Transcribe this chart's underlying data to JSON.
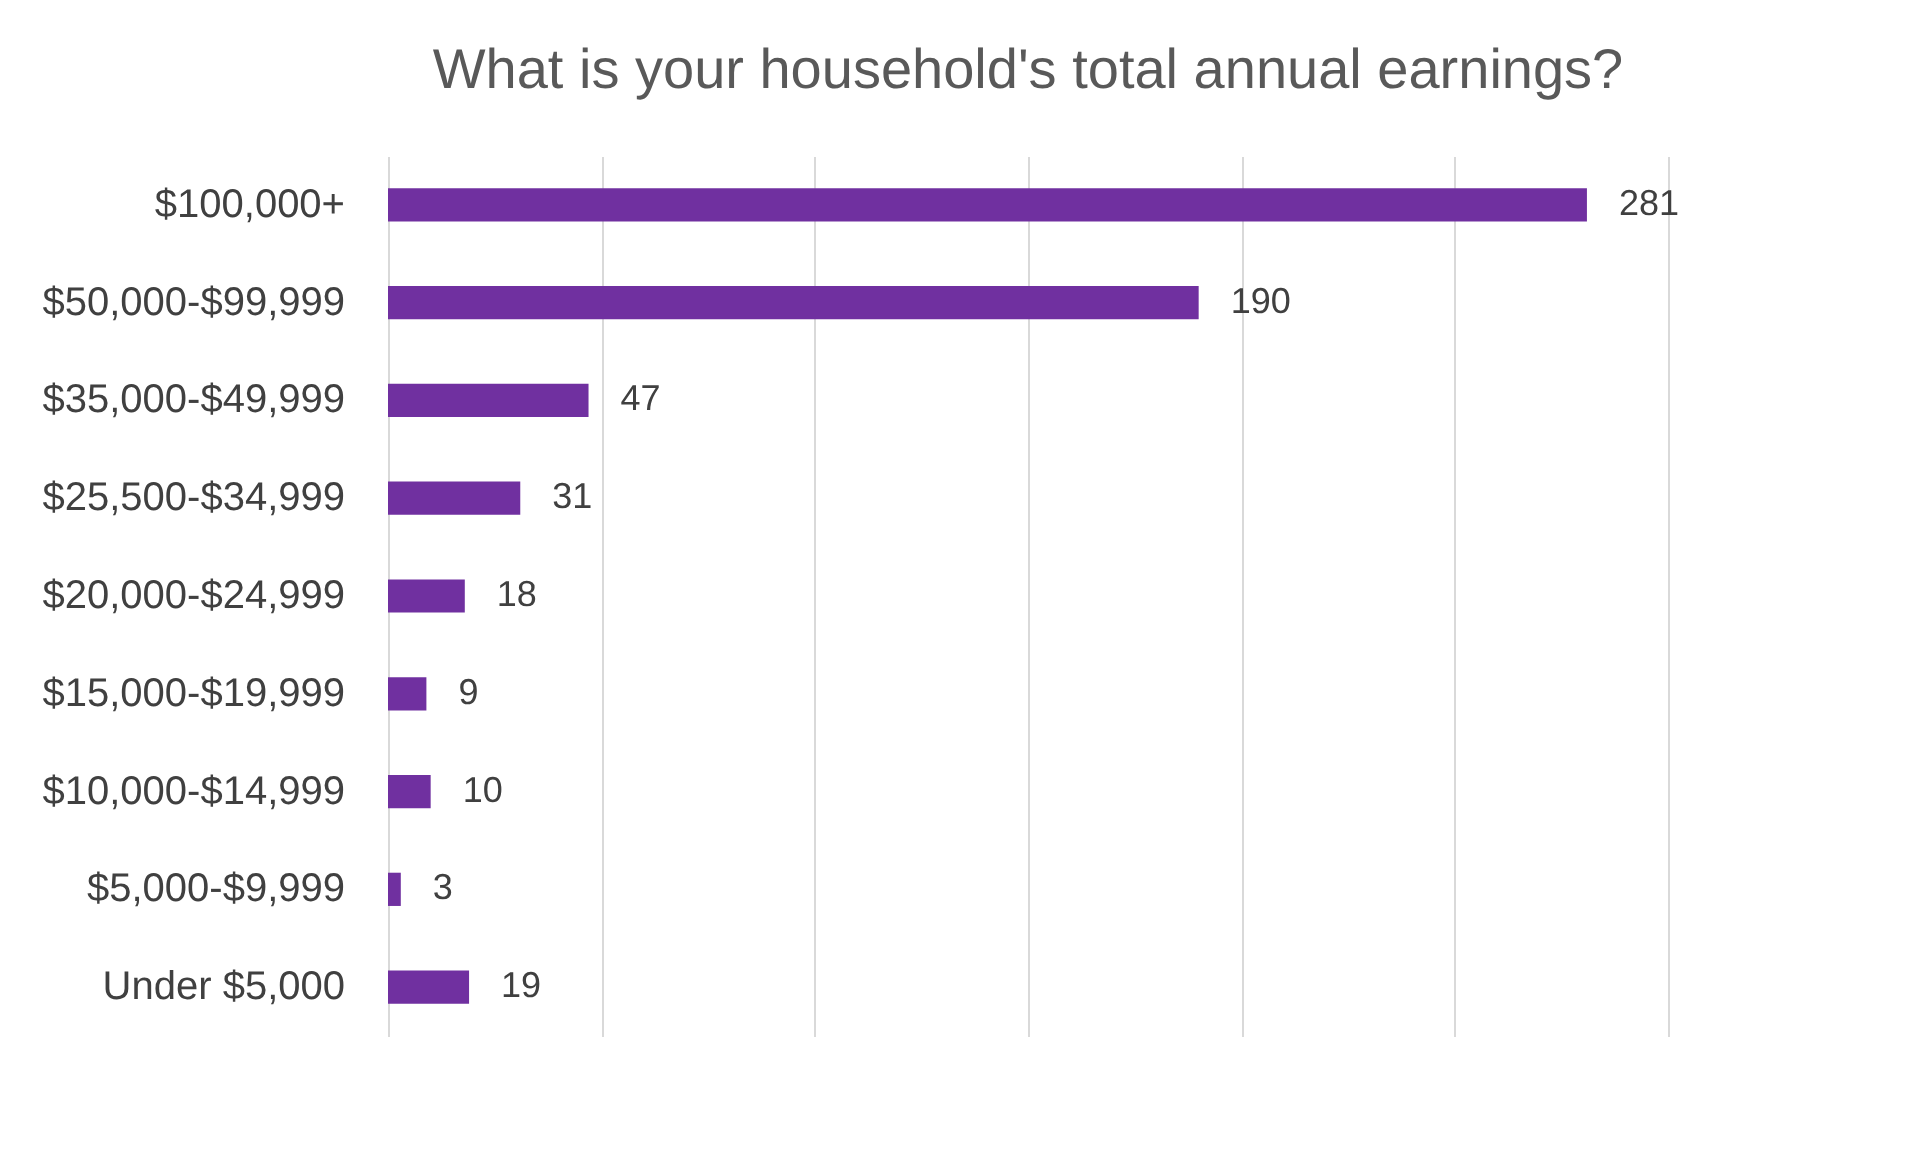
{
  "chart_data": {
    "type": "bar",
    "orientation": "horizontal",
    "title": "What is your household's total annual earnings?",
    "categories": [
      "$100,000+",
      "$50,000-$99,999",
      "$35,000-$49,999",
      "$25,500-$34,999",
      "$20,000-$24,999",
      "$15,000-$19,999",
      "$10,000-$14,999",
      "$5,000-$9,999",
      "Under $5,000"
    ],
    "values": [
      281,
      190,
      47,
      31,
      18,
      9,
      10,
      3,
      19
    ],
    "color": "#7030a0",
    "xlim": [
      0,
      300
    ],
    "xticks": [
      {
        "value": 0,
        "label": null
      },
      {
        "value": 50,
        "label": null
      },
      {
        "value": 100,
        "label": null
      },
      {
        "value": 150,
        "label": null
      },
      {
        "value": 200,
        "label": null
      },
      {
        "value": 250,
        "label": null
      },
      {
        "value": 300,
        "label": null
      }
    ],
    "grid": "x",
    "tick_labels": "y",
    "data_labels": true
  }
}
